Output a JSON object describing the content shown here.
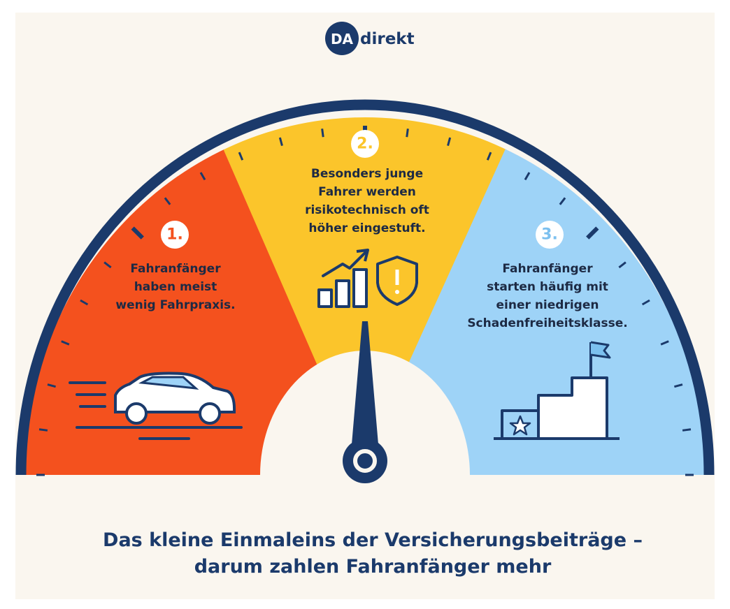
{
  "logo": {
    "mark": "DA",
    "text": "direkt"
  },
  "segments": [
    {
      "number": "1.",
      "lines": [
        "Fahranfänger",
        "haben meist",
        "wenig Fahrpraxis."
      ]
    },
    {
      "number": "2.",
      "lines": [
        "Besonders junge",
        "Fahrer werden",
        "risikotechnisch oft",
        "höher eingestuft."
      ]
    },
    {
      "number": "3.",
      "lines": [
        "Fahranfänger",
        "starten häufig mit",
        "einer niedrigen",
        "Schadenfreiheitsklasse."
      ]
    }
  ],
  "title": [
    "Das kleine Einmaleins der Versicherungsbeiträge –",
    "darum zahlen Fahranfänger mehr"
  ]
}
